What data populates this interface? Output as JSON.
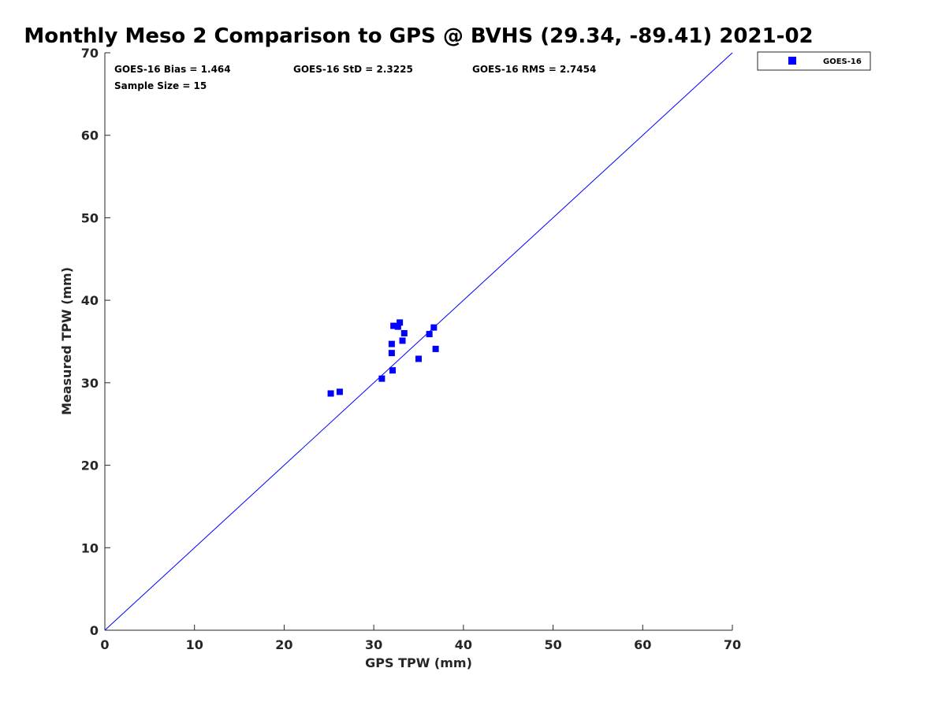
{
  "chart_data": {
    "type": "scatter",
    "title": "Monthly Meso 2 Comparison to GPS @ BVHS (29.34, -89.41) 2021-02",
    "xlabel": "GPS TPW (mm)",
    "ylabel": "Measured TPW (mm)",
    "xlim": [
      0,
      70
    ],
    "ylim": [
      0,
      70
    ],
    "xticks": [
      "0",
      "10",
      "20",
      "30",
      "40",
      "50",
      "60",
      "70"
    ],
    "yticks": [
      "0",
      "10",
      "20",
      "30",
      "40",
      "50",
      "60",
      "70"
    ],
    "grid": false,
    "reference_line": {
      "from": [
        0,
        0
      ],
      "to": [
        70,
        70
      ],
      "color": "#0000ff"
    },
    "stats": {
      "bias": "GOES-16 Bias = 1.464",
      "std": "GOES-16 StD = 2.3225",
      "rms": "GOES-16 RMS = 2.7454",
      "sample_size": "Sample Size = 15"
    },
    "legend": {
      "location": "outside-top-right"
    },
    "series": [
      {
        "name": "GOES-16",
        "color": "#0000ff",
        "marker": "square",
        "points": [
          {
            "x": 25.2,
            "y": 28.7
          },
          {
            "x": 26.2,
            "y": 28.9
          },
          {
            "x": 30.9,
            "y": 30.5
          },
          {
            "x": 32.1,
            "y": 31.5
          },
          {
            "x": 32.0,
            "y": 33.6
          },
          {
            "x": 32.0,
            "y": 34.7
          },
          {
            "x": 32.2,
            "y": 36.9
          },
          {
            "x": 32.7,
            "y": 36.8
          },
          {
            "x": 32.9,
            "y": 37.3
          },
          {
            "x": 33.2,
            "y": 35.1
          },
          {
            "x": 33.4,
            "y": 36.0
          },
          {
            "x": 35.0,
            "y": 32.9
          },
          {
            "x": 36.2,
            "y": 35.9
          },
          {
            "x": 36.7,
            "y": 36.7
          },
          {
            "x": 36.9,
            "y": 34.1
          }
        ]
      }
    ]
  }
}
